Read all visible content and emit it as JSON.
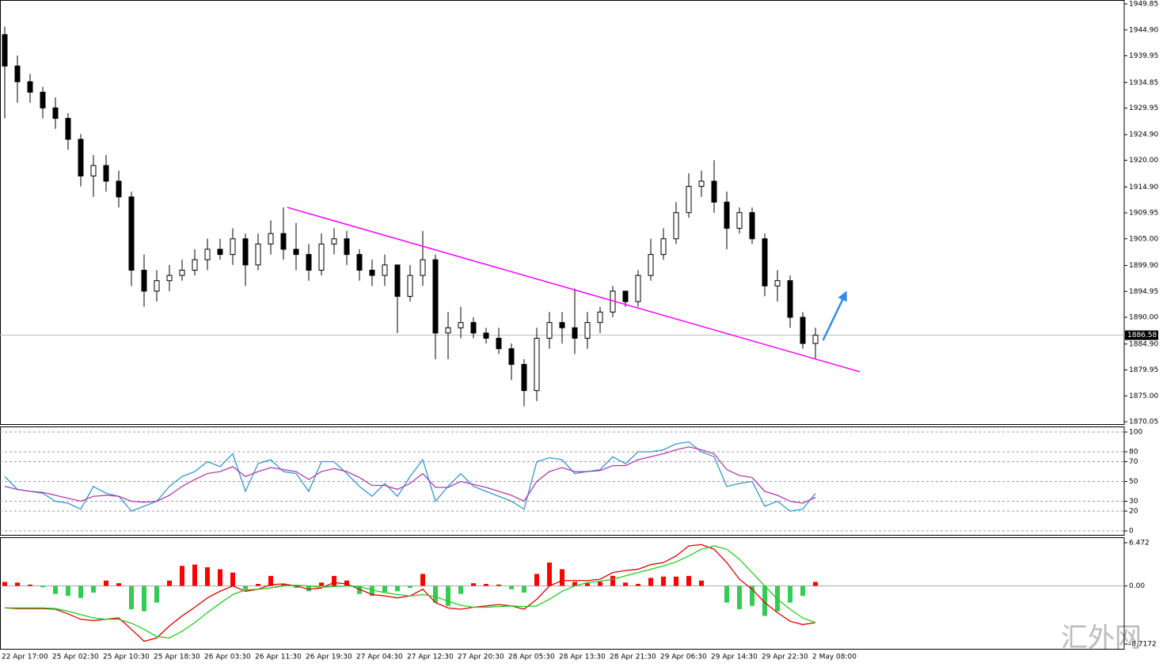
{
  "watermark": "汇外网",
  "chart_data": [
    {
      "type": "candlestick",
      "up_color": "#ffffff",
      "down_color": "#000000",
      "grid": false,
      "categories": [
        "22 Apr 17:00",
        null,
        null,
        null,
        "25 Apr 02:30",
        null,
        null,
        null,
        "25 Apr 10:30",
        null,
        null,
        null,
        "25 Apr 18:30",
        null,
        null,
        null,
        "26 Apr 03:30",
        null,
        null,
        null,
        "26 Apr 11:30",
        null,
        null,
        null,
        "26 Apr 19:30",
        null,
        null,
        null,
        "27 Apr 04:30",
        null,
        null,
        null,
        "27 Apr 12:30",
        null,
        null,
        null,
        "27 Apr 20:30",
        null,
        null,
        null,
        "28 Apr 05:30",
        null,
        null,
        null,
        "28 Apr 13:30",
        null,
        null,
        null,
        "28 Apr 21:30",
        null,
        null,
        null,
        "29 Apr 06:30",
        null,
        null,
        null,
        "29 Apr 14:30",
        null,
        null,
        null,
        "29 Apr 22:30",
        null,
        null,
        null,
        "2 May 08:00"
      ],
      "open": [
        1944,
        1938,
        1935,
        1933,
        1930,
        1928,
        1924,
        1917,
        1919,
        1916,
        1913,
        1899,
        1895,
        1897,
        1898,
        1899,
        1901,
        1903,
        1902,
        1905,
        1900,
        1904,
        1906,
        1903,
        1902,
        1899,
        1904,
        1905,
        1902,
        1899,
        1898,
        1900,
        1894,
        1898,
        1901,
        1887,
        1888,
        1889,
        1887,
        1886,
        1884,
        1881,
        1876,
        1886,
        1889,
        1888,
        1886,
        1889,
        1891,
        1895,
        1893,
        1898,
        1902,
        1905,
        1910,
        1915,
        1916,
        1912,
        1907,
        1910,
        1905,
        1896,
        1897,
        1890,
        1885
      ],
      "high": [
        1945.5,
        1940,
        1936.5,
        1934,
        1932,
        1929,
        1925,
        1921,
        1921,
        1918,
        1914,
        1902,
        1899,
        1900,
        1901,
        1903,
        1905,
        1905,
        1907,
        1906,
        1906,
        1908.5,
        1911,
        1908,
        1904,
        1906,
        1907,
        1906.5,
        1903,
        1901,
        1902,
        1900,
        1900,
        1906.5,
        1902,
        1891,
        1892,
        1890,
        1888,
        1888,
        1885,
        1882,
        1888,
        1891,
        1891,
        1895.5,
        1891,
        1892,
        1896,
        1895,
        1899,
        1905,
        1907,
        1912,
        1917.5,
        1918,
        1920,
        1914,
        1911,
        1911,
        1906,
        1899,
        1898,
        1891,
        1888
      ],
      "low": [
        1928,
        1931,
        1931,
        1928,
        1926,
        1922,
        1915,
        1913,
        1914,
        1911,
        1896,
        1892,
        1893,
        1895,
        1897,
        1898,
        1899,
        1901,
        1900,
        1896,
        1899,
        1902,
        1901,
        1899,
        1897,
        1898,
        1902,
        1900,
        1897,
        1896,
        1896,
        1887,
        1893,
        1896,
        1882,
        1882,
        1886,
        1886,
        1885,
        1883,
        1878,
        1873,
        1874,
        1884,
        1885,
        1883,
        1884,
        1887,
        1890,
        1892,
        1892,
        1897,
        1901,
        1904,
        1909,
        1913,
        1910,
        1903,
        1906,
        1904,
        1894,
        1893,
        1888,
        1884,
        1882
      ],
      "close": [
        1938,
        1935,
        1933,
        1930,
        1928,
        1924,
        1917,
        1919,
        1916,
        1913,
        1899,
        1895,
        1897,
        1898,
        1899,
        1901,
        1903,
        1902,
        1905,
        1900,
        1904,
        1906,
        1903,
        1902,
        1899,
        1904,
        1905,
        1902,
        1899,
        1898,
        1900,
        1894,
        1898,
        1901,
        1887,
        1888,
        1889,
        1887,
        1886,
        1884,
        1881,
        1876,
        1886,
        1889,
        1888,
        1886,
        1889,
        1891,
        1895,
        1893,
        1898,
        1902,
        1905,
        1910,
        1915,
        1916,
        1912,
        1907,
        1910,
        1905,
        1896,
        1897,
        1890,
        1885,
        1886.58
      ],
      "last_price": 1886.58,
      "trendline": {
        "x": [
          22.3,
          67.5
        ],
        "y": [
          1911.0,
          1879.6
        ],
        "color": "#ff00ff"
      },
      "arrow": {
        "x": [
          64.6,
          66.4
        ],
        "y": [
          1885.6,
          1894.7
        ],
        "color": "#2e8ee0"
      },
      "ylim": [
        1869.6,
        1950.61
      ],
      "yticks": [
        1949.85,
        {
          "value": 1944.9,
          "label": "1944.90"
        },
        1939.95,
        1934.85,
        1929.95,
        {
          "value": 1924.9,
          "label": "1924.90"
        },
        {
          "value": 1920,
          "label": "1920.00"
        },
        {
          "value": 1914.9,
          "label": "1914.90"
        },
        1909.95,
        {
          "value": 1905,
          "label": "1905.00"
        },
        {
          "value": 1899.9,
          "label": "1899.90"
        },
        1894.95,
        {
          "value": 1890,
          "label": "1890.00"
        },
        {
          "value": 1884.9,
          "label": "1884.90"
        },
        1879.95,
        {
          "value": 1875,
          "label": "1875.00"
        },
        1870.05
      ]
    },
    {
      "type": "line",
      "grid": true,
      "ylim": [
        -4,
        105.6
      ],
      "yticks": [
        100,
        80,
        70,
        50,
        30,
        20,
        0
      ],
      "series": [
        {
          "color": "#3399cc",
          "values": [
            55,
            42,
            40,
            38,
            30,
            28,
            22,
            45,
            38,
            35,
            20,
            25,
            30,
            45,
            55,
            60,
            70,
            65,
            78,
            40,
            68,
            72,
            60,
            58,
            40,
            70,
            70,
            58,
            45,
            35,
            48,
            35,
            55,
            72,
            30,
            45,
            58,
            45,
            40,
            35,
            30,
            22,
            70,
            74,
            72,
            58,
            60,
            62,
            75,
            68,
            80,
            80,
            82,
            88,
            90,
            80,
            75,
            45,
            48,
            50,
            25,
            30,
            20,
            22,
            38
          ]
        },
        {
          "color": "#b03cb0",
          "values": [
            45,
            42,
            40,
            39,
            36,
            33,
            30,
            35,
            36,
            35,
            30,
            29,
            30,
            36,
            45,
            52,
            58,
            60,
            65,
            55,
            60,
            64,
            62,
            60,
            52,
            60,
            63,
            60,
            54,
            46,
            46,
            42,
            48,
            58,
            44,
            44,
            50,
            47,
            44,
            40,
            36,
            30,
            50,
            60,
            64,
            60,
            60,
            61,
            66,
            66,
            72,
            75,
            78,
            82,
            85,
            82,
            78,
            62,
            56,
            54,
            40,
            36,
            30,
            28,
            34
          ]
        }
      ]
    },
    {
      "type": "macd",
      "grid": false,
      "positive_color": "#ff0000",
      "negative_color": "#33cc55",
      "ylim": [
        -9.43,
        7.3
      ],
      "yticks": [
        6.472,
        {
          "value": 0,
          "label": "0.00"
        },
        -8.7172
      ],
      "histogram": [
        0.6,
        0.5,
        0.2,
        -0.2,
        -1.2,
        -1.5,
        -1.8,
        -1.0,
        0.8,
        0.4,
        -3.5,
        -3.8,
        -2.5,
        0.8,
        3.0,
        3.2,
        2.8,
        2.5,
        2.0,
        -0.5,
        0.3,
        1.5,
        0.2,
        -0.3,
        -0.8,
        0.5,
        1.5,
        0.8,
        -1.2,
        -1.5,
        -0.9,
        -0.8,
        -0.3,
        1.8,
        -2.5,
        -3.0,
        -1.2,
        0.4,
        0.3,
        0.2,
        -0.5,
        -1.0,
        1.8,
        3.5,
        2.5,
        0.6,
        0.4,
        0.6,
        1.5,
        0.5,
        0.3,
        1.2,
        1.4,
        1.4,
        1.5,
        0.8,
        0,
        -2.5,
        -3.5,
        -3.0,
        -4.5,
        -3.8,
        -2.5,
        -1.5,
        0.6
      ],
      "series": [
        {
          "color": "#e00000",
          "values": [
            -3.3,
            -3.4,
            -3.4,
            -3.4,
            -3.5,
            -4.2,
            -5.0,
            -5.2,
            -5.0,
            -4.8,
            -6.5,
            -8.3,
            -7.8,
            -6.0,
            -4.5,
            -3.2,
            -1.8,
            -0.8,
            0,
            -0.8,
            -0.5,
            0.2,
            0.3,
            0,
            -0.5,
            -0.3,
            0.5,
            0.3,
            -0.5,
            -1.3,
            -1.5,
            -1.8,
            -1.5,
            -0.5,
            -2.5,
            -3.3,
            -3.5,
            -3.2,
            -3.0,
            -2.8,
            -3.0,
            -3.5,
            -2.0,
            0,
            0.8,
            0.8,
            0.8,
            1.0,
            2.0,
            2.3,
            2.5,
            3.2,
            3.5,
            4.5,
            6.0,
            6.2,
            5.5,
            3.5,
            1.0,
            -0.5,
            -2.5,
            -4.0,
            -5.3,
            -5.8,
            -5.5
          ]
        },
        {
          "color": "#22cc22",
          "values": [
            -3.3,
            -3.3,
            -3.3,
            -3.3,
            -3.4,
            -3.8,
            -4.3,
            -4.8,
            -5.0,
            -5.0,
            -5.6,
            -6.5,
            -7.6,
            -7.8,
            -6.8,
            -5.5,
            -4.0,
            -2.6,
            -1.3,
            -0.6,
            -0.5,
            -0.3,
            0,
            0.1,
            0,
            -0.2,
            -0.1,
            0,
            -0.1,
            -0.6,
            -1.0,
            -1.3,
            -1.5,
            -1.3,
            -1.6,
            -2.3,
            -2.9,
            -3.2,
            -3.2,
            -3.1,
            -3.0,
            -3.1,
            -3.0,
            -2.0,
            -0.8,
            0,
            0.5,
            0.7,
            1.0,
            1.5,
            2.0,
            2.5,
            3.0,
            3.6,
            4.5,
            5.5,
            6.0,
            5.5,
            4.0,
            2.0,
            0,
            -2.0,
            -3.5,
            -4.8,
            -5.5
          ]
        }
      ]
    }
  ]
}
